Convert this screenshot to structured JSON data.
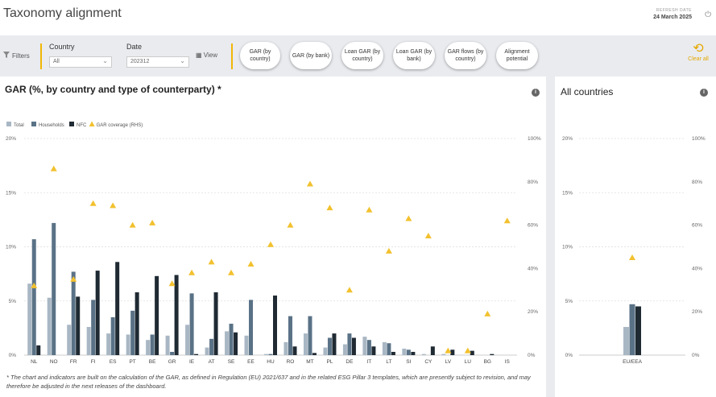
{
  "header": {
    "title": "Taxonomy alignment",
    "refresh_label": "REFRESH DATE",
    "refresh_date": "24 March 2025"
  },
  "filters": {
    "filters_label": "Filters",
    "country_label": "Country",
    "country_value": "All",
    "date_label": "Date",
    "date_value": "202312",
    "view_label": "View",
    "clear_label": "Clear all",
    "tabs": [
      {
        "label": "GAR (by country)"
      },
      {
        "label": "GAR (by bank)"
      },
      {
        "label": "Loan GAR (by country)"
      },
      {
        "label": "Loan GAR (by bank)"
      },
      {
        "label": "GAR flows (by country)"
      },
      {
        "label": "Alignment potential"
      }
    ]
  },
  "main_panel": {
    "title": "GAR (%, by country and type of counterparty) *",
    "footnote": "* The chart and indicators are built on the calculation of the GAR, as defined in Regulation (EU) 2021/637 and in the related ESG Pillar 3 templates, which are presently subject to revision, and may therefore be adjusted in the next releases of the dashboard."
  },
  "side_panel": {
    "title": "All countries"
  },
  "colors": {
    "total": "#a9b7c4",
    "households": "#5a7286",
    "nfc": "#1f2a33",
    "coverage": "#f2c12e",
    "accent": "#f2b705"
  },
  "chart_data": [
    {
      "type": "bar",
      "legend": [
        "Total",
        "Households",
        "NFC",
        "GAR coverage (RHS)"
      ],
      "ylim": [
        0,
        20
      ],
      "y_ticks": [
        "0%",
        "5%",
        "10%",
        "15%",
        "20%"
      ],
      "y2lim": [
        0,
        100
      ],
      "y2_ticks": [
        "0%",
        "20%",
        "40%",
        "60%",
        "80%",
        "100%"
      ],
      "categories": [
        "NL",
        "NO",
        "FR",
        "FI",
        "ES",
        "PT",
        "BE",
        "GR",
        "IE",
        "AT",
        "SE",
        "EE",
        "HU",
        "RO",
        "MT",
        "PL",
        "DE",
        "IT",
        "LT",
        "SI",
        "CY",
        "LV",
        "LU",
        "BG",
        "IS"
      ],
      "series": [
        {
          "name": "Total",
          "values": [
            6.6,
            5.3,
            2.8,
            2.6,
            2.0,
            1.9,
            1.4,
            1.8,
            2.8,
            0.7,
            2.2,
            1.8,
            0.1,
            1.2,
            2.0,
            0.7,
            1.0,
            1.7,
            1.2,
            0.6,
            0.1,
            0.1,
            0,
            0,
            0
          ]
        },
        {
          "name": "Households",
          "values": [
            10.7,
            12.2,
            7.7,
            5.1,
            3.5,
            4.1,
            1.9,
            0.3,
            5.7,
            1.5,
            2.9,
            5.1,
            0.1,
            3.6,
            3.6,
            1.6,
            2.0,
            1.4,
            1.1,
            0.5,
            0,
            0,
            0,
            0,
            0
          ]
        },
        {
          "name": "NFC",
          "values": [
            0.9,
            0,
            5.4,
            7.8,
            8.6,
            5.8,
            7.3,
            7.4,
            0.1,
            5.8,
            2.1,
            0,
            5.5,
            0.8,
            0.2,
            2.0,
            1.6,
            0.8,
            0.3,
            0.3,
            0.8,
            0.5,
            0.4,
            0.1,
            0
          ]
        },
        {
          "name": "GAR coverage (RHS)",
          "axis": "right",
          "values": [
            32,
            86,
            35,
            70,
            69,
            60,
            61,
            33,
            38,
            43,
            38,
            42,
            51,
            60,
            79,
            68,
            30,
            67,
            48,
            63,
            55,
            2,
            2,
            19,
            62
          ]
        }
      ]
    },
    {
      "type": "bar",
      "ylim": [
        0,
        20
      ],
      "y_ticks": [
        "0%",
        "5%",
        "10%",
        "15%",
        "20%"
      ],
      "y2lim": [
        0,
        100
      ],
      "y2_ticks": [
        "0%",
        "20%",
        "40%",
        "60%",
        "80%",
        "100%"
      ],
      "categories": [
        "EU/EEA"
      ],
      "series": [
        {
          "name": "Total",
          "values": [
            2.6
          ]
        },
        {
          "name": "Households",
          "values": [
            4.7
          ]
        },
        {
          "name": "NFC",
          "values": [
            4.5
          ]
        },
        {
          "name": "GAR coverage (RHS)",
          "axis": "right",
          "values": [
            45
          ]
        }
      ]
    }
  ]
}
